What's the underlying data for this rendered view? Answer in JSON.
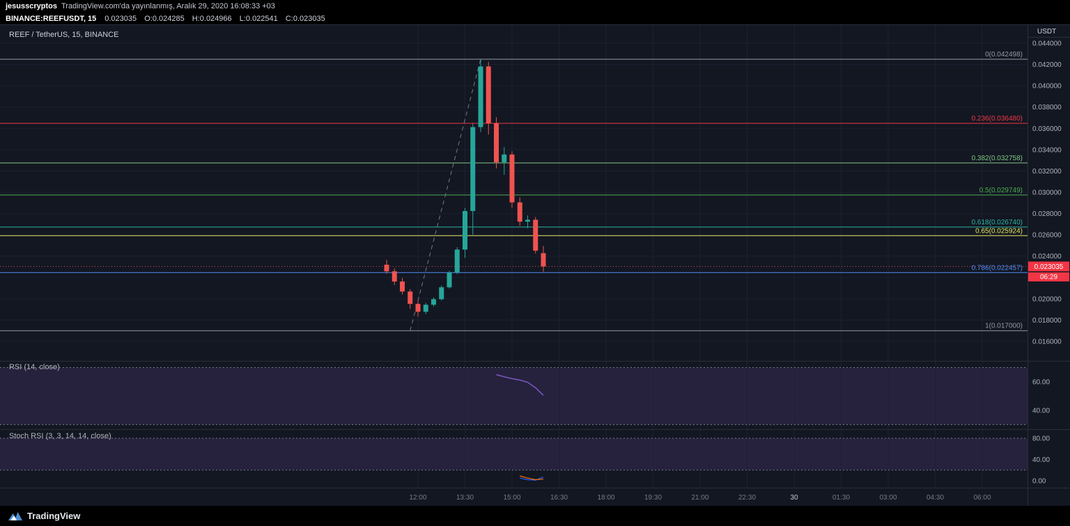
{
  "header": {
    "publisher": "jesusscryptos",
    "publish_info": "TradingView.com'da yayınlanmış, Aralık 29, 2020 16:08:33 +03",
    "symbol": "BINANCE:REEFUSDT, 15",
    "last_price": "0.023035",
    "ohlc": {
      "o": "O:0.024285",
      "h": "H:0.024966",
      "l": "L:0.022541",
      "c": "C:0.023035"
    }
  },
  "chart": {
    "title": "REEF / TetherUS, 15, BINANCE",
    "axis_currency": "USDT",
    "price_badge": "0.023035",
    "countdown_badge": "06:29",
    "colors": {
      "up": "#26a69a",
      "down": "#ef5350",
      "badge": "#f23645",
      "rsi_line": "#7e57c2",
      "stoch_k": "#2962ff",
      "stoch_d": "#ff6d00",
      "grid": "#1c2130",
      "separator": "#2a2e39",
      "trendline": "#787b86"
    }
  },
  "chart_data": {
    "type": "candlestick",
    "title": "REEF / TetherUS, 15, BINANCE",
    "symbol": "REEF/USDT",
    "exchange": "BINANCE",
    "interval_minutes": 15,
    "last_price": 0.023035,
    "price_axis": {
      "min": 0.016,
      "max": 0.044,
      "step": 0.002,
      "labels": [
        "0.044000",
        "0.042000",
        "0.040000",
        "0.038000",
        "0.036000",
        "0.034000",
        "0.032000",
        "0.030000",
        "0.028000",
        "0.026000",
        "0.024000",
        "0.022000",
        "0.020000",
        "0.018000",
        "0.016000"
      ]
    },
    "time_axis": {
      "labels": [
        "12:00",
        "13:30",
        "15:00",
        "16:30",
        "18:00",
        "19:30",
        "21:00",
        "22:30",
        "30",
        "01:30",
        "03:00",
        "04:30",
        "06:00"
      ],
      "emphasized_label": "30"
    },
    "candles": [
      {
        "t": "11:00",
        "o": 0.0232,
        "h": 0.02365,
        "l": 0.02235,
        "c": 0.02258
      },
      {
        "t": "11:15",
        "o": 0.02258,
        "h": 0.02285,
        "l": 0.02128,
        "c": 0.02162
      },
      {
        "t": "11:30",
        "o": 0.02162,
        "h": 0.02195,
        "l": 0.0204,
        "c": 0.02068
      },
      {
        "t": "11:45",
        "o": 0.02068,
        "h": 0.0209,
        "l": 0.01905,
        "c": 0.01952
      },
      {
        "t": "12:00",
        "o": 0.01952,
        "h": 0.01988,
        "l": 0.01832,
        "c": 0.01878
      },
      {
        "t": "12:15",
        "o": 0.01878,
        "h": 0.01962,
        "l": 0.01856,
        "c": 0.01944
      },
      {
        "t": "12:30",
        "o": 0.01944,
        "h": 0.02012,
        "l": 0.01928,
        "c": 0.01996
      },
      {
        "t": "12:45",
        "o": 0.01996,
        "h": 0.02124,
        "l": 0.01984,
        "c": 0.02108
      },
      {
        "t": "13:00",
        "o": 0.02108,
        "h": 0.02262,
        "l": 0.02096,
        "c": 0.02246
      },
      {
        "t": "13:15",
        "o": 0.02246,
        "h": 0.02485,
        "l": 0.02232,
        "c": 0.02462
      },
      {
        "t": "13:30",
        "o": 0.02462,
        "h": 0.02852,
        "l": 0.02385,
        "c": 0.02824
      },
      {
        "t": "13:45",
        "o": 0.02824,
        "h": 0.03645,
        "l": 0.02602,
        "c": 0.03612
      },
      {
        "t": "14:00",
        "o": 0.03612,
        "h": 0.042498,
        "l": 0.03565,
        "c": 0.04182
      },
      {
        "t": "14:15",
        "o": 0.04182,
        "h": 0.04225,
        "l": 0.03542,
        "c": 0.03648
      },
      {
        "t": "14:30",
        "o": 0.03648,
        "h": 0.03705,
        "l": 0.03225,
        "c": 0.03282
      },
      {
        "t": "14:45",
        "o": 0.03282,
        "h": 0.03424,
        "l": 0.03165,
        "c": 0.03355
      },
      {
        "t": "15:00",
        "o": 0.03355,
        "h": 0.03385,
        "l": 0.02855,
        "c": 0.02905
      },
      {
        "t": "15:15",
        "o": 0.02905,
        "h": 0.02952,
        "l": 0.02685,
        "c": 0.02724
      },
      {
        "t": "15:30",
        "o": 0.02724,
        "h": 0.02784,
        "l": 0.02662,
        "c": 0.02742
      },
      {
        "t": "15:45",
        "o": 0.02742,
        "h": 0.02768,
        "l": 0.02425,
        "c": 0.02452
      },
      {
        "t": "16:00",
        "o": 0.024285,
        "h": 0.024966,
        "l": 0.022541,
        "c": 0.023035
      }
    ],
    "fib_levels": [
      {
        "ratio": "0",
        "label": "0(0.042498)",
        "price": 0.042498,
        "color": "#9598a1"
      },
      {
        "ratio": "0.236",
        "label": "0.236(0.036480)",
        "price": 0.03648,
        "color": "#f23645"
      },
      {
        "ratio": "0.382",
        "label": "0.382(0.032758)",
        "price": 0.032758,
        "color": "#81c784"
      },
      {
        "ratio": "0.5",
        "label": "0.5(0.029749)",
        "price": 0.029749,
        "color": "#4caf50"
      },
      {
        "ratio": "0.618",
        "label": "0.618(0.026740)",
        "price": 0.02674,
        "color": "#2bb6a3"
      },
      {
        "ratio": "0.65",
        "label": "0.65(0.025924)",
        "price": 0.025924,
        "color": "#e7e75a"
      },
      {
        "ratio": "0.786",
        "label": "0.786(0.022457)",
        "price": 0.022457,
        "color": "#4c8df8"
      },
      {
        "ratio": "1",
        "label": "1(0.017000)",
        "price": 0.017,
        "color": "#9598a1"
      }
    ],
    "trendline": {
      "from_time": "11:45",
      "from_price": 0.017,
      "to_time": "14:00",
      "to_price": 0.042498
    },
    "indicators": {
      "rsi": {
        "name": "RSI (14, close)",
        "bands": [
          70,
          30
        ],
        "start_time": "14:30",
        "values": [
          65.0,
          63.5,
          62.2,
          61.2,
          59.6,
          55.8,
          50.5
        ],
        "scale_marks": [
          {
            "value": 60,
            "label": "60.00"
          },
          {
            "value": 40,
            "label": "40.00"
          }
        ]
      },
      "stoch_rsi": {
        "name": "Stoch RSI (3, 3, 14, 14, close)",
        "bands": [
          80,
          20
        ],
        "start_time": "15:15",
        "k": [
          5,
          2,
          1,
          7
        ],
        "d": [
          9,
          5,
          2,
          3
        ],
        "scale_marks": [
          {
            "value": 80,
            "label": "80.00"
          },
          {
            "value": 40,
            "label": "40.00"
          },
          {
            "value": 0,
            "label": "0.00"
          }
        ]
      }
    }
  },
  "footer": {
    "brand": "TradingView"
  }
}
